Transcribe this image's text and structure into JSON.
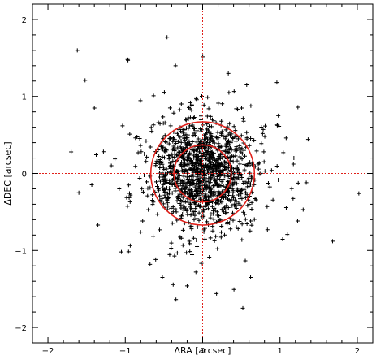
{
  "chart_data": {
    "type": "scatter",
    "title": "",
    "xlabel": "ΔRA [arcsec]",
    "ylabel": "ΔDEC [arcsec]",
    "xlim": [
      -2.2,
      2.2
    ],
    "ylim": [
      -2.2,
      2.2
    ],
    "xticks": [
      -2,
      -1,
      0,
      1,
      2
    ],
    "yticks": [
      -2,
      -1,
      0,
      1,
      2
    ],
    "xtick_labels": [
      "−2",
      "−1",
      "0",
      "1",
      "2"
    ],
    "ytick_labels": [
      "−2",
      "−1",
      "0",
      "1",
      "2"
    ],
    "grid": false,
    "marker": "plus",
    "marker_color": "#000000",
    "reference_lines": {
      "x": 0,
      "y": 0,
      "color": "#e0201a",
      "style": "dotted"
    },
    "circles": [
      {
        "cx": 0.0,
        "cy": 0.0,
        "r": 0.37,
        "color": "#e0201a"
      },
      {
        "cx": 0.0,
        "cy": 0.0,
        "r": 0.67,
        "color": "#e0201a"
      }
    ],
    "outlier_points": [
      [
        -1.62,
        1.6
      ],
      [
        -0.97,
        1.48
      ],
      [
        -0.46,
        1.77
      ],
      [
        -1.52,
        1.21
      ],
      [
        -1.7,
        0.28
      ],
      [
        -1.4,
        0.85
      ],
      [
        -1.6,
        -0.25
      ],
      [
        -1.05,
        -1.02
      ],
      [
        -0.52,
        -1.35
      ],
      [
        0.18,
        -1.56
      ],
      [
        0.52,
        -1.75
      ],
      [
        1.68,
        -0.88
      ],
      [
        2.02,
        -0.26
      ],
      [
        1.3,
        -0.47
      ],
      [
        0.57,
        1.15
      ],
      [
        0.96,
        1.18
      ],
      [
        1.08,
        0.46
      ],
      [
        -0.35,
        1.4
      ],
      [
        0.34,
        1.05
      ],
      [
        -1.18,
        0.1
      ],
      [
        -0.68,
        -1.18
      ],
      [
        0.62,
        -1.35
      ],
      [
        1.18,
        0.2
      ],
      [
        -0.2,
        -1.46
      ],
      [
        1.34,
        -0.12
      ]
    ],
    "cluster_seed": 20240601,
    "cluster_count": 1350,
    "cluster_sigma": 0.33
  }
}
